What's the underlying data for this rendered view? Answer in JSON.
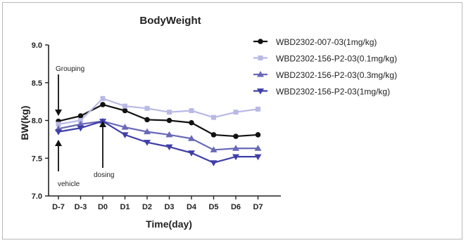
{
  "chart_data": {
    "type": "line",
    "title": "BodyWeight",
    "xlabel": "Time(day)",
    "ylabel": "BW(kg)",
    "categories": [
      "D-7",
      "D-3",
      "D0",
      "D1",
      "D2",
      "D3",
      "D4",
      "D5",
      "D6",
      "D7"
    ],
    "ylim": [
      7.0,
      9.0
    ],
    "yticks": [
      "9.0",
      "8.5",
      "8.0",
      "7.5",
      "7.0"
    ],
    "grid": false,
    "legend_position": "top-right",
    "series": [
      {
        "name": "WBD2302-007-03(1mg/kg)",
        "color": "#111111",
        "marker": "circle",
        "values": [
          7.99,
          8.06,
          8.21,
          8.13,
          8.01,
          8.0,
          7.97,
          7.81,
          7.79,
          7.81
        ]
      },
      {
        "name": "WBD2302-156-P2-03(0.1mg/kg)",
        "color": "#b9b9e6",
        "marker": "square",
        "values": [
          7.95,
          8.0,
          8.29,
          8.19,
          8.16,
          8.11,
          8.13,
          8.04,
          8.11,
          8.15
        ]
      },
      {
        "name": "WBD2302-156-P2-03(0.3mg/kg)",
        "color": "#6868b8",
        "marker": "triangle-up",
        "values": [
          7.89,
          7.95,
          7.99,
          7.91,
          7.85,
          7.81,
          7.76,
          7.61,
          7.63,
          7.63
        ]
      },
      {
        "name": "WBD2302-156-P2-03(1mg/kg)",
        "color": "#3f3fa8",
        "marker": "triangle-down",
        "values": [
          7.85,
          7.9,
          7.99,
          7.81,
          7.71,
          7.65,
          7.57,
          7.44,
          7.52,
          7.52
        ]
      }
    ],
    "annotations": [
      {
        "text": "Grouping",
        "category": "D-7",
        "arrow": "down"
      },
      {
        "text": "vehicle",
        "category": "D-7",
        "arrow": "up"
      },
      {
        "text": "dosing",
        "category": "D0",
        "arrow": "up"
      }
    ]
  }
}
